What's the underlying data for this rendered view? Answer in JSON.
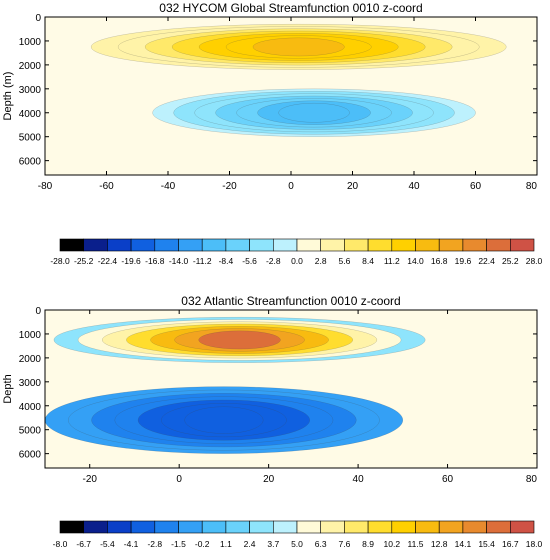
{
  "chart_data": [
    {
      "type": "heatmap",
      "title": "032 HYCOM Global Streamfunction 0010 z-coord",
      "ylabel": "Depth (m)",
      "xlabel": "",
      "xlim": [
        -80,
        80
      ],
      "ylim": [
        6600,
        0
      ],
      "y_inverted": true,
      "x_ticks": [
        "-80",
        "-60",
        "-40",
        "-20",
        "0",
        "20",
        "40",
        "60",
        "80"
      ],
      "x_tick_values": [
        -80,
        -60,
        -40,
        -20,
        0,
        20,
        40,
        60,
        80
      ],
      "y_ticks": [
        "0",
        "1000",
        "2000",
        "3000",
        "4000",
        "5000",
        "6000"
      ],
      "y_tick_values": [
        0,
        1000,
        2000,
        3000,
        4000,
        5000,
        6000
      ],
      "colorbar_labels": [
        "-28.0",
        "-25.2",
        "-22.4",
        "-19.6",
        "-16.8",
        "-14.0",
        "-11.2",
        "-8.4",
        "-5.6",
        "-2.8",
        "0.0",
        "2.8",
        "5.6",
        "8.4",
        "11.2",
        "14.0",
        "16.8",
        "19.6",
        "22.4",
        "25.2",
        "28.0"
      ],
      "colorbar_values": [
        -28.0,
        -25.2,
        -22.4,
        -19.6,
        -16.8,
        -14.0,
        -11.2,
        -8.4,
        -5.6,
        -2.8,
        0.0,
        2.8,
        5.6,
        8.4,
        11.2,
        14.0,
        16.8,
        19.6,
        22.4,
        25.2,
        28.0
      ],
      "features": [
        {
          "kind": "positive",
          "x": [
            -65,
            70
          ],
          "y": [
            300,
            2200
          ],
          "level": 16
        },
        {
          "kind": "negative",
          "x": [
            -45,
            60
          ],
          "y": [
            3000,
            5000
          ],
          "level": -11
        }
      ]
    },
    {
      "type": "heatmap",
      "title": "032 Atlantic Streamfunction 0010 z-coord",
      "ylabel": "Depth",
      "xlabel": "",
      "xlim": [
        -30,
        80
      ],
      "ylim": [
        6600,
        0
      ],
      "y_inverted": true,
      "x_ticks": [
        "-20",
        "0",
        "20",
        "40",
        "60",
        "80"
      ],
      "x_tick_values": [
        -20,
        0,
        20,
        40,
        60,
        80
      ],
      "y_ticks": [
        "0",
        "1000",
        "2000",
        "3000",
        "4000",
        "5000",
        "6000"
      ],
      "y_tick_values": [
        0,
        1000,
        2000,
        3000,
        4000,
        5000,
        6000
      ],
      "colorbar_labels": [
        "-8.0",
        "-6.7",
        "-5.4",
        "-4.1",
        "-2.8",
        "-1.5",
        "-0.2",
        "1.1",
        "2.4",
        "3.7",
        "5.0",
        "6.3",
        "7.6",
        "8.9",
        "10.2",
        "11.5",
        "12.8",
        "14.1",
        "15.4",
        "16.7",
        "18.0"
      ],
      "colorbar_values": [
        -8.0,
        -6.7,
        -5.4,
        -4.1,
        -2.8,
        -1.5,
        -0.2,
        1.1,
        2.4,
        3.7,
        5.0,
        6.3,
        7.6,
        8.9,
        10.2,
        11.5,
        12.8,
        14.1,
        15.4,
        16.7,
        18.0
      ],
      "features": [
        {
          "kind": "positive",
          "x": [
            -28,
            55
          ],
          "y": [
            300,
            2200
          ],
          "level": 16
        },
        {
          "kind": "negative",
          "x": [
            -30,
            50
          ],
          "y": [
            3200,
            6000
          ],
          "level": -4
        }
      ]
    }
  ],
  "colors": {
    "scale": [
      "#000000",
      "#0a1f8c",
      "#0a3fc8",
      "#1060e0",
      "#1f82ee",
      "#34a0f5",
      "#4cbef8",
      "#6ad2fb",
      "#8ee4fc",
      "#bdf1fd",
      "#fffad8",
      "#fff3a8",
      "#ffe96a",
      "#ffdd2e",
      "#ffd000",
      "#f8bb10",
      "#f2a420",
      "#e88a2e",
      "#dc6e3a",
      "#cf5245"
    ],
    "background": "#ffffff",
    "axis": "#000000"
  }
}
